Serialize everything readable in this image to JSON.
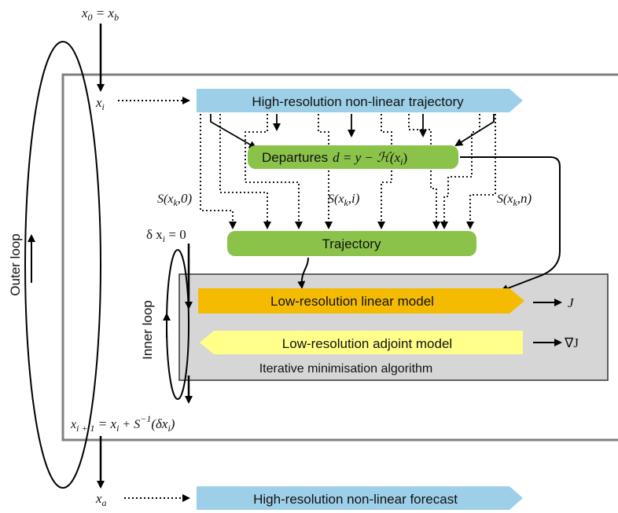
{
  "nodes": {
    "hr_trajectory": "High-resolution non-linear trajectory",
    "departures_label": "Departures",
    "departures_eq": "d = y − ",
    "departures_op": "ℋ(x",
    "departures_sub": "i",
    "trajectory": "Trajectory",
    "linear_model": "Low-resolution linear model",
    "adjoint_model": "Low-resolution adjoint model",
    "minimisation": "Iterative minimisation algorithm",
    "hr_forecast": "High-resolution non-linear forecast"
  },
  "labels": {
    "outer_loop": "Outer loop",
    "inner_loop": "Inner loop",
    "x0": "x",
    "x0_sub": "0",
    "x0_eq": " = x",
    "x0_eq_sub": "b",
    "xi": "x",
    "xi_sub": "i",
    "xa": "x",
    "xa_sub": "a",
    "delta_xi": "δ x",
    "delta_xi_sub": "i",
    "delta_xi_eq": " = 0",
    "S0": "S(x",
    "S0_sub": "k",
    "S0_end": ",0)",
    "Si": "S(x",
    "Si_sub": "k",
    "Si_end": ",i)",
    "Sn": "S(x",
    "Sn_sub": "k",
    "Sn_end": ",n)",
    "J": "J",
    "gradJ": "∇J",
    "update_lhs": "x",
    "update_lhs_sub": "i + 1",
    "update_eq": " =  x",
    "update_eq_sub": "i",
    "update_plus": " + S",
    "update_sup": "−1",
    "update_end": "(δx",
    "update_end_sub": "i",
    "update_close": ")"
  },
  "colors": {
    "blue_arrow": "#9dd0e8",
    "green_box": "#8bc34a",
    "orange_arrow": "#f5bb00",
    "yellow_arrow": "#ffff8a",
    "gray_box": "#d6d6d6",
    "frame": "#808080"
  }
}
